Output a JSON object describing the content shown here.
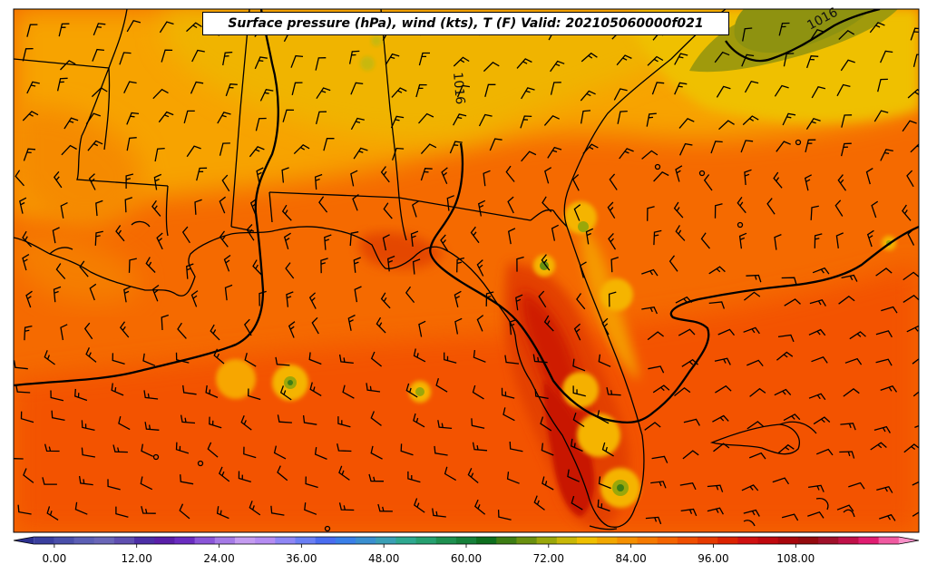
{
  "title": "Surface pressure (hPa), wind (kts), T (F) Valid: 202105060000f021",
  "contour_labels": [
    {
      "text": "1016",
      "where": "north-central"
    },
    {
      "text": "1016",
      "where": "north-east"
    }
  ],
  "colorbar": {
    "tick_labels": [
      "0.00",
      "12.00",
      "24.00",
      "36.00",
      "48.00",
      "60.00",
      "72.00",
      "84.00",
      "96.00",
      "108.00"
    ],
    "min": -6,
    "max": 126,
    "step": 3,
    "colors": [
      "#2b2f8f",
      "#3a3f9e",
      "#4a4faa",
      "#5c5fb5",
      "#6a66b8",
      "#5f4fb0",
      "#4c2fa6",
      "#5a1fa8",
      "#6a2cc0",
      "#8a55d8",
      "#a57ae6",
      "#c49bf0",
      "#b58cf2",
      "#8f86f5",
      "#6b7ff4",
      "#4a6cf0",
      "#3a7fe8",
      "#3a8fd0",
      "#3a9fb5",
      "#2ea890",
      "#26a070",
      "#1e9050",
      "#16803a",
      "#0e6e1e",
      "#3d7d14",
      "#6a900f",
      "#9aa70a",
      "#c8b807",
      "#efc000",
      "#f2a800",
      "#f59000",
      "#f67a00",
      "#f56400",
      "#f04e00",
      "#e63a00",
      "#dc2200",
      "#d01010",
      "#c0080e",
      "#a8060c",
      "#940a0e",
      "#a0102a",
      "#c01048",
      "#e01c70",
      "#f05aa0",
      "#f890c8"
    ]
  },
  "map": {
    "projection": "lambert-conformal",
    "lat_range": [
      23,
      35
    ],
    "lon_range": [
      -95,
      -76
    ]
  }
}
